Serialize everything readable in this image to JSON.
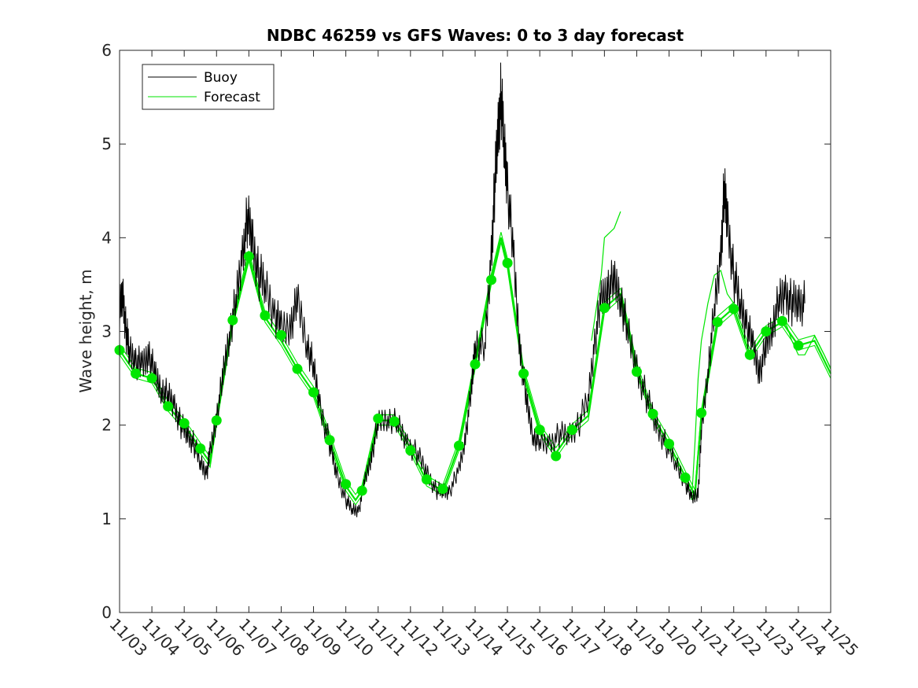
{
  "chart_data": {
    "type": "line",
    "title": "NDBC 46259 vs GFS Waves: 0 to 3 day forecast",
    "xlabel": "",
    "ylabel": "Wave height, m",
    "ylim": [
      0,
      6
    ],
    "yticks": [
      "0",
      "1",
      "2",
      "3",
      "4",
      "5",
      "6"
    ],
    "x_day_range": [
      3,
      25
    ],
    "xticks": [
      "11/03",
      "11/04",
      "11/05",
      "11/06",
      "11/07",
      "11/08",
      "11/09",
      "11/10",
      "11/11",
      "11/12",
      "11/13",
      "11/14",
      "11/15",
      "11/16",
      "11/17",
      "11/18",
      "11/19",
      "11/20",
      "11/21",
      "11/22",
      "11/23",
      "11/24",
      "11/25"
    ],
    "legend": {
      "position": "top-left",
      "entries": [
        "Buoy",
        "Forecast"
      ]
    },
    "colors": {
      "buoy": "#000000",
      "forecast": "#00e600",
      "axes": "#262626"
    },
    "series": [
      {
        "name": "Buoy",
        "x": [
          3.0,
          3.1,
          3.2,
          3.3,
          3.5,
          3.7,
          3.9,
          4.1,
          4.3,
          4.5,
          4.7,
          4.9,
          5.1,
          5.3,
          5.5,
          5.7,
          5.8,
          6.0,
          6.2,
          6.4,
          6.6,
          6.8,
          6.95,
          7.1,
          7.3,
          7.5,
          7.8,
          8.0,
          8.3,
          8.5,
          8.8,
          9.0,
          9.2,
          9.5,
          9.7,
          10.0,
          10.2,
          10.4,
          10.6,
          10.8,
          11.0,
          11.3,
          11.6,
          11.9,
          12.2,
          12.5,
          12.8,
          13.0,
          13.2,
          13.5,
          13.7,
          13.9,
          14.0,
          14.3,
          14.5,
          14.6,
          14.7,
          14.8,
          14.9,
          15.0,
          15.2,
          15.4,
          15.6,
          15.8,
          16.0,
          16.3,
          16.6,
          16.9,
          17.2,
          17.5,
          17.7,
          17.9,
          18.1,
          18.3,
          18.5,
          18.7,
          19.0,
          19.3,
          19.6,
          19.9,
          20.2,
          20.5,
          20.7,
          20.9,
          21.0,
          21.2,
          21.4,
          21.6,
          21.7,
          21.8,
          22.0,
          22.2,
          22.4,
          22.6,
          22.8,
          23.0,
          23.2,
          23.4,
          23.6,
          23.8,
          24.0,
          24.2
        ],
        "values": [
          3.2,
          3.4,
          3.0,
          2.8,
          2.7,
          2.6,
          2.8,
          2.5,
          2.4,
          2.3,
          2.2,
          2.0,
          1.9,
          1.8,
          1.6,
          1.5,
          1.7,
          2.1,
          2.5,
          3.0,
          3.3,
          3.8,
          4.2,
          4.0,
          3.6,
          3.5,
          3.2,
          3.0,
          3.1,
          3.3,
          2.9,
          2.6,
          2.2,
          1.8,
          1.5,
          1.2,
          1.1,
          1.1,
          1.4,
          1.7,
          2.0,
          2.1,
          2.0,
          1.8,
          1.7,
          1.5,
          1.3,
          1.3,
          1.3,
          1.5,
          1.9,
          2.4,
          2.9,
          2.8,
          3.8,
          4.5,
          5.1,
          5.5,
          5.0,
          4.6,
          3.7,
          2.8,
          2.2,
          1.9,
          1.8,
          1.8,
          1.9,
          1.9,
          2.0,
          2.3,
          2.9,
          3.3,
          3.5,
          3.5,
          3.4,
          3.0,
          2.6,
          2.3,
          2.0,
          1.8,
          1.6,
          1.4,
          1.2,
          1.3,
          1.9,
          2.6,
          3.2,
          3.8,
          4.5,
          4.2,
          3.6,
          3.3,
          3.1,
          2.8,
          2.6,
          2.8,
          3.1,
          3.3,
          3.4,
          3.3,
          3.3,
          3.3
        ]
      },
      {
        "name": "Forecast",
        "x": [
          3.0,
          3.5,
          4.0,
          4.5,
          5.0,
          5.5,
          5.8,
          6.0,
          6.5,
          7.0,
          7.5,
          8.0,
          8.5,
          9.0,
          9.5,
          10.0,
          10.3,
          10.5,
          11.0,
          11.5,
          12.0,
          12.5,
          13.0,
          13.5,
          14.0,
          14.5,
          14.8,
          15.0,
          15.5,
          16.0,
          16.5,
          17.0,
          17.5,
          18.0,
          18.5,
          19.0,
          19.5,
          20.0,
          20.5,
          20.8,
          21.0,
          21.5,
          22.0,
          22.5,
          23.0,
          23.5,
          24.0,
          24.5,
          25.0
        ],
        "values": [
          2.8,
          2.55,
          2.5,
          2.2,
          2.0,
          1.75,
          1.6,
          2.05,
          3.1,
          3.8,
          3.15,
          2.9,
          2.6,
          2.35,
          1.85,
          1.35,
          1.2,
          1.3,
          2.05,
          2.05,
          1.75,
          1.4,
          1.3,
          1.78,
          2.65,
          3.55,
          4.0,
          3.72,
          2.55,
          1.95,
          1.7,
          1.95,
          2.1,
          3.25,
          3.4,
          2.6,
          2.1,
          1.8,
          1.45,
          1.25,
          2.1,
          3.1,
          3.25,
          2.75,
          3.0,
          3.1,
          2.85,
          2.9,
          2.55
        ]
      }
    ],
    "forecast_markers": {
      "x": [
        3.0,
        3.5,
        4.0,
        4.5,
        5.0,
        5.5,
        6.0,
        6.5,
        7.0,
        7.5,
        8.0,
        8.5,
        9.0,
        9.5,
        10.0,
        10.5,
        11.0,
        11.5,
        12.0,
        12.5,
        13.0,
        13.5,
        14.0,
        14.5,
        15.0,
        15.5,
        16.0,
        16.5,
        17.0,
        18.0,
        19.0,
        19.5,
        20.0,
        20.5,
        21.0,
        21.5,
        22.0,
        22.5,
        23.0,
        23.5,
        24.0
      ],
      "values": [
        2.8,
        2.55,
        2.5,
        2.2,
        2.02,
        1.75,
        2.05,
        3.12,
        3.8,
        3.17,
        2.96,
        2.6,
        2.35,
        1.84,
        1.37,
        1.3,
        2.07,
        2.04,
        1.73,
        1.42,
        1.32,
        1.78,
        2.65,
        3.55,
        3.73,
        2.55,
        1.95,
        1.67,
        1.95,
        3.25,
        2.57,
        2.12,
        1.8,
        1.44,
        2.13,
        3.1,
        3.24,
        2.75,
        3.0,
        3.11,
        2.85
      ]
    },
    "forecast_spread": [
      {
        "x": [
          17.6,
          17.9,
          18.0,
          18.3,
          18.5
        ],
        "values": [
          2.9,
          3.6,
          4.0,
          4.1,
          4.28
        ]
      },
      {
        "x": [
          20.7,
          20.8,
          20.9,
          21.0,
          21.2,
          21.4,
          21.6,
          21.8,
          22.0
        ],
        "values": [
          1.2,
          1.8,
          2.5,
          2.9,
          3.3,
          3.6,
          3.65,
          3.4,
          3.3
        ]
      },
      {
        "x": [
          23.6,
          23.8,
          24.0,
          24.2,
          24.5,
          24.8,
          25.0
        ],
        "values": [
          3.1,
          2.9,
          2.75,
          2.75,
          2.95,
          2.75,
          2.6
        ]
      }
    ]
  }
}
